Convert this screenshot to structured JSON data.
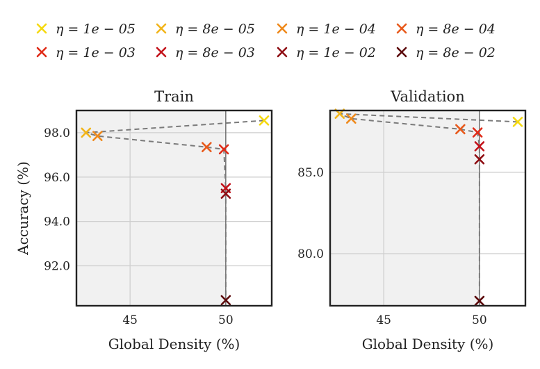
{
  "chart_data": {
    "type": "scatter",
    "legend": {
      "placement": "top",
      "entries": [
        {
          "label": "η = 1e − 05",
          "color": "#f5d90f"
        },
        {
          "label": "η = 8e − 05",
          "color": "#f2b51b"
        },
        {
          "label": "η = 1e − 04",
          "color": "#ef8a1c"
        },
        {
          "label": "η = 8e − 04",
          "color": "#e85a1c"
        },
        {
          "label": "η = 1e − 03",
          "color": "#e02b17"
        },
        {
          "label": "η = 8e − 03",
          "color": "#c3121a"
        },
        {
          "label": "η = 1e − 02",
          "color": "#8e0c12"
        },
        {
          "label": "η = 8e − 02",
          "color": "#5c0a0c"
        }
      ]
    },
    "marker": "x",
    "connector": "dashed",
    "reference_line_x": 50,
    "panels": [
      {
        "title": "Train",
        "xlabel": "Global Density (%)",
        "ylabel": "Accuracy (%)",
        "xlim": [
          42.2,
          52.4
        ],
        "ylim": [
          90.2,
          99.0
        ],
        "xticks": [
          45,
          50
        ],
        "yticks": [
          92.0,
          94.0,
          96.0,
          98.0
        ],
        "xtick_labels": [
          "45",
          "50"
        ],
        "ytick_labels": [
          "92.0",
          "94.0",
          "96.0",
          "98.0"
        ],
        "grid": true,
        "points": [
          {
            "x": 52.0,
            "y": 98.55,
            "series": 0
          },
          {
            "x": 42.7,
            "y": 98.0,
            "series": 1
          },
          {
            "x": 43.3,
            "y": 97.85,
            "series": 2
          },
          {
            "x": 49.0,
            "y": 97.35,
            "series": 3
          },
          {
            "x": 49.9,
            "y": 97.25,
            "series": 4
          },
          {
            "x": 50.0,
            "y": 95.5,
            "series": 5
          },
          {
            "x": 50.0,
            "y": 95.25,
            "series": 6
          },
          {
            "x": 50.0,
            "y": 90.45,
            "series": 7
          }
        ]
      },
      {
        "title": "Validation",
        "xlabel": "Global Density (%)",
        "ylabel": "",
        "xlim": [
          42.2,
          52.4
        ],
        "ylim": [
          76.8,
          88.8
        ],
        "xticks": [
          45,
          50
        ],
        "yticks": [
          80.0,
          85.0
        ],
        "xtick_labels": [
          "45",
          "50"
        ],
        "ytick_labels": [
          "80.0",
          "85.0"
        ],
        "grid": true,
        "points": [
          {
            "x": 52.0,
            "y": 88.1,
            "series": 0
          },
          {
            "x": 42.7,
            "y": 88.6,
            "series": 1
          },
          {
            "x": 43.3,
            "y": 88.3,
            "series": 2
          },
          {
            "x": 49.0,
            "y": 87.65,
            "series": 3
          },
          {
            "x": 49.9,
            "y": 87.45,
            "series": 4
          },
          {
            "x": 50.0,
            "y": 86.6,
            "series": 5
          },
          {
            "x": 50.0,
            "y": 85.8,
            "series": 6
          },
          {
            "x": 50.0,
            "y": 77.1,
            "series": 7
          }
        ]
      }
    ]
  }
}
